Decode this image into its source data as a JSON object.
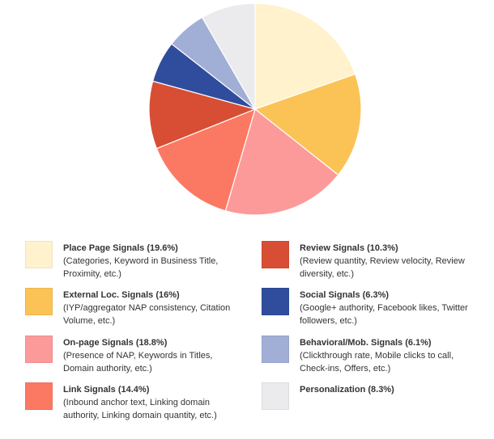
{
  "chart_data": {
    "type": "pie",
    "start_angle_deg": 0,
    "direction": "clockwise",
    "slices": [
      {
        "label": "Place Page Signals",
        "value": 19.6,
        "color": "#FFF2CC"
      },
      {
        "label": "External Loc. Signals",
        "value": 16,
        "color": "#FBC355"
      },
      {
        "label": "On-page Signals",
        "value": 18.8,
        "color": "#FC9A99"
      },
      {
        "label": "Link Signals",
        "value": 14.4,
        "color": "#FB7963"
      },
      {
        "label": "Review Signals",
        "value": 10.3,
        "color": "#D84E34"
      },
      {
        "label": "Social Signals",
        "value": 6.3,
        "color": "#2F4D9C"
      },
      {
        "label": "Behavioral/Mob. Signals",
        "value": 6.1,
        "color": "#A1AFD6"
      },
      {
        "label": "Personalization",
        "value": 8.3,
        "color": "#EBEBEE"
      }
    ]
  },
  "legend": [
    {
      "title": "Place Page Signals (19.6%)",
      "desc": "(Categories, Keyword in Business Title, Proximity, etc.)",
      "color": "#FFF2CC"
    },
    {
      "title": "External Loc. Signals (16%)",
      "desc": "(IYP/aggregator NAP consistency, Citation Volume, etc.)",
      "color": "#FBC355"
    },
    {
      "title": "On-page Signals (18.8%)",
      "desc": "(Presence of NAP, Keywords in Titles, Domain authority, etc.)",
      "color": "#FC9A99"
    },
    {
      "title": "Link Signals (14.4%)",
      "desc": "(Inbound anchor text, Linking domain authority, Linking domain quantity, etc.)",
      "color": "#FB7963"
    },
    {
      "title": "Review Signals (10.3%)",
      "desc": "(Review quantity, Review velocity, Review diversity, etc.)",
      "color": "#D84E34"
    },
    {
      "title": "Social Signals (6.3%)",
      "desc": "(Google+ authority, Facebook likes, Twitter followers, etc.)",
      "color": "#2F4D9C"
    },
    {
      "title": "Behavioral/Mob. Signals (6.1%)",
      "desc": "(Clickthrough rate, Mobile clicks to call, Check-ins, Offers, etc.)",
      "color": "#A1AFD6"
    },
    {
      "title": "Personalization (8.3%)",
      "desc": "",
      "color": "#EBEBEE"
    }
  ]
}
